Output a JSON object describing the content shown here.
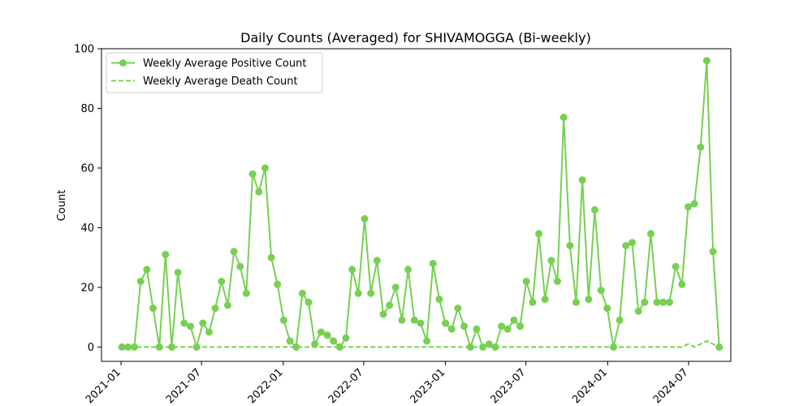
{
  "chart_data": {
    "type": "line",
    "title": "Daily Counts (Averaged) for SHIVAMOGGA (Bi-weekly)",
    "xlabel": "",
    "ylabel": "Count",
    "ylim": [
      -4.8,
      100
    ],
    "yticks": [
      0,
      20,
      40,
      60,
      80,
      100
    ],
    "xlim": [
      "2020-11-18",
      "2024-10-04"
    ],
    "xticks": [
      "2021-01",
      "2021-07",
      "2022-01",
      "2022-07",
      "2023-01",
      "2023-07",
      "2024-01",
      "2024-07"
    ],
    "x_tick_dates": [
      "2021-01-01",
      "2021-07-01",
      "2022-01-01",
      "2022-07-01",
      "2023-01-01",
      "2023-07-01",
      "2024-01-01",
      "2024-07-01"
    ],
    "grid": false,
    "legend_position": "top-left",
    "x": [
      "2021-01-03",
      "2021-01-17",
      "2021-01-31",
      "2021-02-14",
      "2021-02-28",
      "2021-03-14",
      "2021-03-28",
      "2021-04-11",
      "2021-04-25",
      "2021-05-09",
      "2021-05-23",
      "2021-06-06",
      "2021-06-20",
      "2021-07-04",
      "2021-07-18",
      "2021-08-01",
      "2021-08-15",
      "2021-08-29",
      "2021-09-12",
      "2021-09-26",
      "2021-10-10",
      "2021-10-24",
      "2021-11-07",
      "2021-11-21",
      "2021-12-05",
      "2021-12-19",
      "2022-01-02",
      "2022-01-16",
      "2022-01-30",
      "2022-02-13",
      "2022-02-27",
      "2022-03-13",
      "2022-03-27",
      "2022-04-10",
      "2022-04-24",
      "2022-05-08",
      "2022-05-22",
      "2022-06-05",
      "2022-06-19",
      "2022-07-03",
      "2022-07-17",
      "2022-07-31",
      "2022-08-14",
      "2022-08-28",
      "2022-09-11",
      "2022-09-25",
      "2022-10-09",
      "2022-10-23",
      "2022-11-06",
      "2022-11-20",
      "2022-12-04",
      "2022-12-18",
      "2023-01-01",
      "2023-01-15",
      "2023-01-29",
      "2023-02-12",
      "2023-02-26",
      "2023-03-12",
      "2023-03-26",
      "2023-04-09",
      "2023-04-23",
      "2023-05-07",
      "2023-05-21",
      "2023-06-04",
      "2023-06-18",
      "2023-07-02",
      "2023-07-16",
      "2023-07-30",
      "2023-08-13",
      "2023-08-27",
      "2023-09-10",
      "2023-09-24",
      "2023-10-08",
      "2023-10-22",
      "2023-11-05",
      "2023-11-19",
      "2023-12-03",
      "2023-12-17",
      "2023-12-31",
      "2024-01-14",
      "2024-01-28",
      "2024-02-11",
      "2024-02-25",
      "2024-03-10",
      "2024-03-24",
      "2024-04-07",
      "2024-04-21",
      "2024-05-05",
      "2024-05-19",
      "2024-06-02",
      "2024-06-16",
      "2024-06-30",
      "2024-07-14",
      "2024-07-28",
      "2024-08-11",
      "2024-08-25",
      "2024-09-08"
    ],
    "series": [
      {
        "name": "Weekly Average Positive Count",
        "color": "#77d052",
        "style": "solid",
        "marker": "circle",
        "values": [
          0,
          0,
          0,
          22,
          26,
          13,
          0,
          31,
          0,
          25,
          8,
          7,
          0,
          8,
          5,
          13,
          22,
          14,
          32,
          27,
          18,
          58,
          52,
          60,
          30,
          21,
          9,
          2,
          0,
          18,
          15,
          1,
          5,
          4,
          2,
          0,
          3,
          26,
          18,
          43,
          18,
          29,
          11,
          14,
          20,
          9,
          26,
          9,
          8,
          2,
          28,
          16,
          8,
          6,
          13,
          7,
          0,
          6,
          0,
          1,
          0,
          7,
          6,
          9,
          7,
          22,
          15,
          38,
          16,
          29,
          22,
          77,
          34,
          15,
          56,
          16,
          46,
          19,
          13,
          0,
          9,
          34,
          35,
          12,
          15,
          38,
          15,
          15,
          15,
          27,
          21,
          47,
          48,
          67,
          96,
          32,
          0
        ]
      },
      {
        "name": "Weekly Average Death Count",
        "color": "#77d052",
        "style": "dashed",
        "marker": "none",
        "values": [
          0,
          0,
          0,
          0,
          0,
          0,
          0,
          0,
          0,
          0,
          0,
          0,
          0,
          0,
          0,
          0,
          0,
          0,
          0,
          0,
          0,
          0,
          0,
          0,
          0,
          0,
          0,
          0,
          0,
          0,
          0,
          0,
          0,
          0,
          0,
          0,
          0,
          0,
          0,
          0,
          0,
          0,
          0,
          0,
          0,
          0,
          0,
          0,
          0,
          0,
          0,
          0,
          0,
          0,
          0,
          0,
          0,
          0,
          0,
          0,
          0,
          0,
          0,
          0,
          0,
          0,
          0,
          0,
          0,
          0,
          0,
          0,
          0,
          0,
          0,
          0,
          0,
          0,
          0,
          0,
          0,
          0,
          0,
          0,
          0,
          0,
          0,
          0,
          0,
          0,
          0,
          1,
          0,
          1,
          2,
          1,
          0
        ]
      }
    ]
  }
}
